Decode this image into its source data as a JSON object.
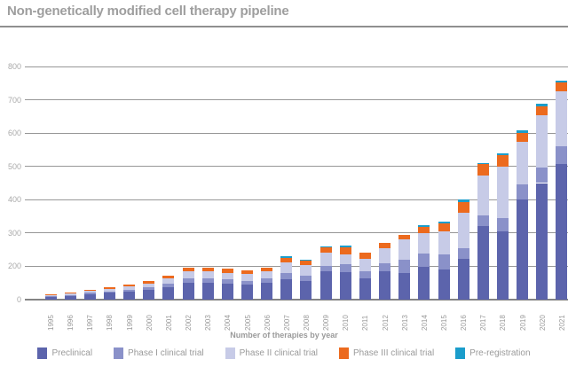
{
  "title": "Non-genetically modified cell therapy pipeline",
  "chart_data": {
    "type": "bar",
    "stacked": true,
    "title": "Non-genetically modified cell therapy pipeline",
    "xlabel": "Number of therapies by year",
    "ylabel": "",
    "ylim": [
      0,
      800
    ],
    "grid": true,
    "legend_position": "bottom",
    "y_tick_labels_top_to_bottom": [
      "800",
      "700",
      "600",
      "500",
      "400",
      "300",
      "200",
      "0"
    ],
    "categories": [
      "1995",
      "1996",
      "1997",
      "1998",
      "1999",
      "2000",
      "2001",
      "2002",
      "2003",
      "2004",
      "2005",
      "2006",
      "2007",
      "2008",
      "2009",
      "2010",
      "2011",
      "2012",
      "2013",
      "2014",
      "2015",
      "2016",
      "2017",
      "2018",
      "2019",
      "2020",
      "2021"
    ],
    "series": [
      {
        "name": "Preclinical",
        "color": "#5c64ac",
        "values": [
          8,
          11,
          16,
          20,
          24,
          29,
          38,
          50,
          50,
          48,
          45,
          50,
          60,
          55,
          85,
          82,
          65,
          84,
          80,
          98,
          90,
          122,
          222,
          204,
          300,
          350,
          408
        ]
      },
      {
        "name": "Phase I clinical trial",
        "color": "#8a91c9",
        "values": [
          2,
          3,
          4,
          5,
          6,
          7,
          10,
          13,
          13,
          12,
          12,
          13,
          20,
          18,
          17,
          24,
          19,
          25,
          40,
          40,
          45,
          33,
          31,
          40,
          46,
          46,
          53
        ]
      },
      {
        "name": "Phase II clinical trial",
        "color": "#c7cbe7",
        "values": [
          3,
          4,
          6,
          8,
          10,
          12,
          16,
          21,
          21,
          20,
          19,
          21,
          32,
          32,
          40,
          31,
          38,
          46,
          60,
          62,
          70,
          106,
          120,
          155,
          128,
          158,
          165
        ]
      },
      {
        "name": "Phase III clinical trial",
        "color": "#ec6a1e",
        "values": [
          2,
          3,
          4,
          5,
          5,
          7,
          9,
          12,
          12,
          12,
          11,
          12,
          14,
          13,
          14,
          20,
          18,
          15,
          13,
          19,
          25,
          33,
          33,
          36,
          27,
          27,
          25
        ]
      },
      {
        "name": "Pre-registration",
        "color": "#1b9dcb",
        "values": [
          0,
          0,
          0,
          0,
          0,
          0,
          0,
          0,
          0,
          0,
          0,
          0,
          5,
          2,
          2,
          6,
          0,
          0,
          0,
          4,
          5,
          7,
          5,
          3,
          7,
          7,
          7
        ]
      }
    ]
  }
}
